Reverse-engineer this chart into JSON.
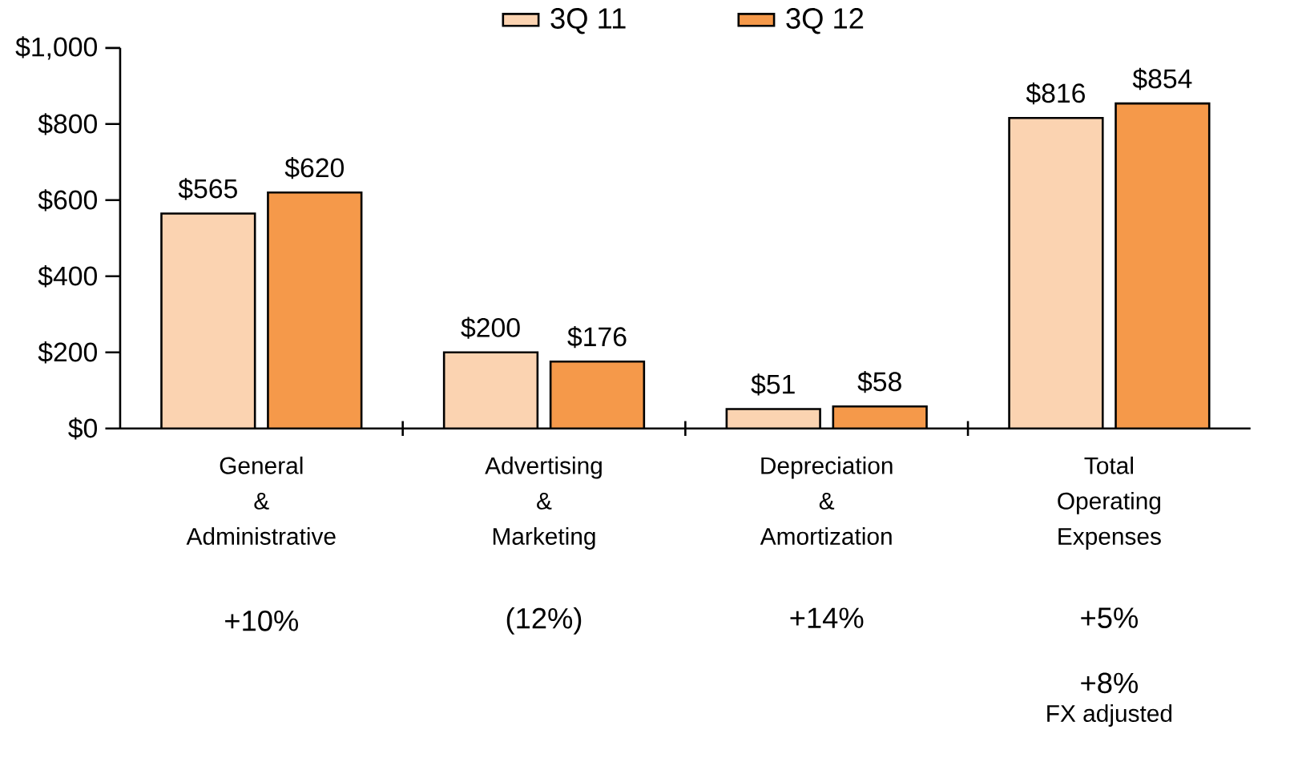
{
  "chart_data": {
    "type": "bar",
    "categories": [
      "General & Administrative",
      "Advertising & Marketing",
      "Depreciation & Amortization",
      "Total Operating Expenses"
    ],
    "series": [
      {
        "name": "3Q 11",
        "color": "#fbd3b1",
        "values": [
          565,
          200,
          51,
          816
        ],
        "value_labels": [
          "$565",
          "$200",
          "$51",
          "$816"
        ]
      },
      {
        "name": "3Q 12",
        "color": "#f5994a",
        "values": [
          620,
          176,
          58,
          854
        ],
        "value_labels": [
          "$620",
          "$176",
          "$58",
          "$854"
        ]
      }
    ],
    "ylim": [
      0,
      1000
    ],
    "yticks": [
      {
        "value": 0,
        "label": "$0"
      },
      {
        "value": 200,
        "label": "$200"
      },
      {
        "value": 400,
        "label": "$400"
      },
      {
        "value": 600,
        "label": "$600"
      },
      {
        "value": 800,
        "label": "$800"
      },
      {
        "value": 1000,
        "label": "$1,000"
      }
    ],
    "legend": "top",
    "grid": false,
    "annotations": [
      "+10%",
      "(12%)",
      "+14%",
      "+5%",
      "+8%",
      "FX adjusted"
    ]
  }
}
